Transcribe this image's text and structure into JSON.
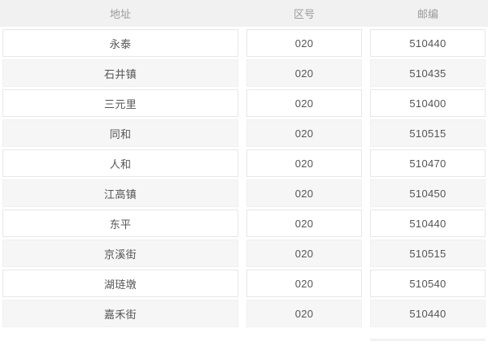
{
  "colors": {
    "header_bg": "#f1f1f1",
    "header_text": "#9b9b9b",
    "row_white_bg": "#ffffff",
    "row_gray_bg": "#f6f6f6",
    "cell_border": "#e7e7e7",
    "cell_text": "#555555"
  },
  "table": {
    "columns": [
      {
        "key": "address",
        "label": "地址"
      },
      {
        "key": "area_code",
        "label": "区号"
      },
      {
        "key": "postal_code",
        "label": "邮编"
      }
    ],
    "rows": [
      {
        "address": "永泰",
        "area_code": "020",
        "postal_code": "510440"
      },
      {
        "address": "石井镇",
        "area_code": "020",
        "postal_code": "510435"
      },
      {
        "address": "三元里",
        "area_code": "020",
        "postal_code": "510400"
      },
      {
        "address": "同和",
        "area_code": "020",
        "postal_code": "510515"
      },
      {
        "address": "人和",
        "area_code": "020",
        "postal_code": "510470"
      },
      {
        "address": "江高镇",
        "area_code": "020",
        "postal_code": "510450"
      },
      {
        "address": "东平",
        "area_code": "020",
        "postal_code": "510440"
      },
      {
        "address": "京溪街",
        "area_code": "020",
        "postal_code": "510515"
      },
      {
        "address": "湖琏墩",
        "area_code": "020",
        "postal_code": "510540"
      },
      {
        "address": "嘉禾街",
        "area_code": "020",
        "postal_code": "510440"
      }
    ]
  }
}
